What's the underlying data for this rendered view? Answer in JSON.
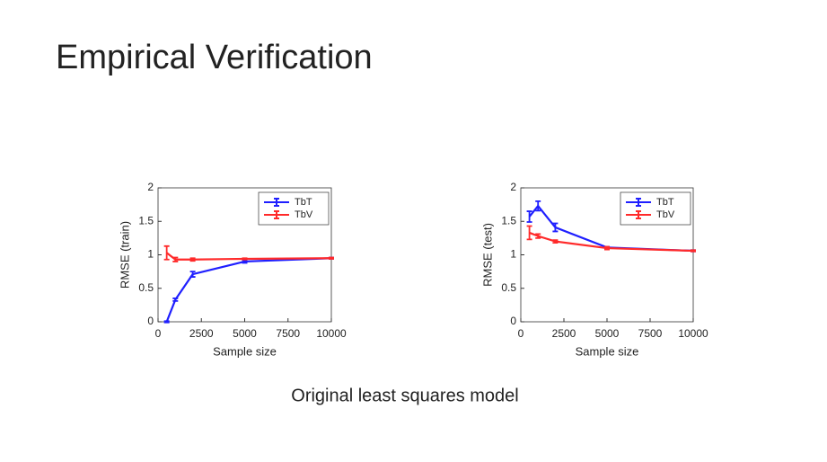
{
  "title": "Empirical Verification",
  "caption": "Original least squares model",
  "chart_data": [
    {
      "type": "line",
      "xlabel": "Sample size",
      "ylabel": "RMSE (train)",
      "x": [
        500,
        1000,
        2000,
        5000,
        10000
      ],
      "series": [
        {
          "name": "TbT",
          "color": "#1f1fff",
          "values": [
            0.0,
            0.33,
            0.71,
            0.9,
            0.95
          ],
          "errors": [
            0.01,
            0.02,
            0.04,
            0.02,
            0.01
          ]
        },
        {
          "name": "TbV",
          "color": "#ff2a2a",
          "values": [
            1.03,
            0.93,
            0.93,
            0.94,
            0.95
          ],
          "errors": [
            0.1,
            0.03,
            0.02,
            0.01,
            0.01
          ]
        }
      ],
      "xlim": [
        0,
        10000
      ],
      "xticks": [
        0,
        2500,
        5000,
        7500,
        10000
      ],
      "ylim": [
        0,
        2
      ],
      "yticks": [
        0,
        0.5,
        1,
        1.5,
        2
      ],
      "legend": "upper right"
    },
    {
      "type": "line",
      "xlabel": "Sample size",
      "ylabel": "RMSE (test)",
      "x": [
        500,
        1000,
        2000,
        5000,
        10000
      ],
      "series": [
        {
          "name": "TbT",
          "color": "#1f1fff",
          "values": [
            1.57,
            1.73,
            1.41,
            1.11,
            1.06
          ],
          "errors": [
            0.08,
            0.07,
            0.06,
            0.01,
            0.01
          ]
        },
        {
          "name": "TbV",
          "color": "#ff2a2a",
          "values": [
            1.33,
            1.28,
            1.2,
            1.1,
            1.06
          ],
          "errors": [
            0.1,
            0.03,
            0.02,
            0.02,
            0.01
          ]
        }
      ],
      "xlim": [
        0,
        10000
      ],
      "xticks": [
        0,
        2500,
        5000,
        7500,
        10000
      ],
      "ylim": [
        0,
        2
      ],
      "yticks": [
        0,
        0.5,
        1,
        1.5,
        2
      ],
      "legend": "upper right"
    }
  ]
}
